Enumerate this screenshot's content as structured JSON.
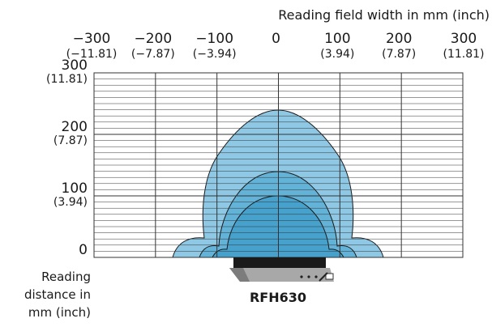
{
  "title": "Reading field width in mm (inch)",
  "y_axis_label": [
    "Reading",
    "distance in",
    "mm (inch)"
  ],
  "device_label": "RFH630",
  "x_ticks": [
    {
      "value": -300,
      "mm": "−300",
      "inch": "(−11.81)"
    },
    {
      "value": -200,
      "mm": "−200",
      "inch": "(−7.87)"
    },
    {
      "value": -100,
      "mm": "−100",
      "inch": "(−3.94)"
    },
    {
      "value": 0,
      "mm": "0",
      "inch": ""
    },
    {
      "value": 100,
      "mm": "100",
      "inch": "(3.94)"
    },
    {
      "value": 200,
      "mm": "200",
      "inch": "(7.87)"
    },
    {
      "value": 300,
      "mm": "300",
      "inch": "(11.81)"
    }
  ],
  "y_ticks": [
    {
      "value": 300,
      "mm": "300",
      "inch": "(11.81)"
    },
    {
      "value": 200,
      "mm": "200",
      "inch": "(7.87)"
    },
    {
      "value": 100,
      "mm": "100",
      "inch": "(3.94)"
    },
    {
      "value": 0,
      "mm": "0",
      "inch": ""
    }
  ],
  "x_range": [
    -300,
    300
  ],
  "y_range": [
    0,
    300
  ],
  "grid": true,
  "colors": {
    "field_outer": "#8ec8e4",
    "field_middle": "#63b3d8",
    "field_inner": "#46a2cd",
    "outline": "#1a1a1a",
    "grid": "#333333",
    "device_body": "#1a1a1a",
    "device_base": "#a8a8a8"
  }
}
